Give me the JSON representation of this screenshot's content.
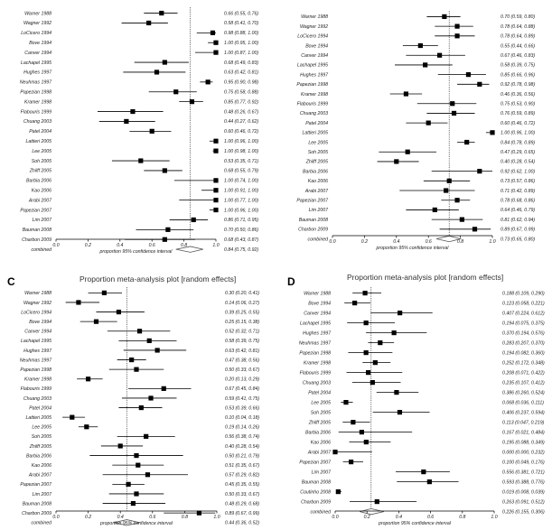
{
  "chart_data": [
    {
      "type": "forest",
      "panel": "",
      "title": "",
      "xlabel": "proportion 95% confidence interval",
      "xlim": [
        0.0,
        1.0
      ],
      "xticks": [
        "0.0",
        "0.2",
        "0.4",
        "0.6",
        "0.8",
        "1.0"
      ],
      "pooled_line": 0.84,
      "studies": [
        {
          "name": "Warner 1988",
          "est": 0.66,
          "lo": 0.55,
          "hi": 0.76,
          "ci": "0.66 (0.55, 0.76)"
        },
        {
          "name": "Wagner 1992",
          "est": 0.58,
          "lo": 0.41,
          "hi": 0.7,
          "ci": "0.58 (0.41, 0.70)"
        },
        {
          "name": "LoCicero 1994",
          "est": 0.98,
          "lo": 0.88,
          "hi": 1.0,
          "ci": "0.98 (0.88, 1.00)"
        },
        {
          "name": "Bove 1994",
          "est": 1.0,
          "lo": 0.95,
          "hi": 1.0,
          "ci": "1.00 (0.95, 1.00)"
        },
        {
          "name": "Canver 1994",
          "est": 1.0,
          "lo": 0.87,
          "hi": 1.0,
          "ci": "1.00 (0.87, 1.00)"
        },
        {
          "name": "Lachapel 1995",
          "est": 0.68,
          "lo": 0.49,
          "hi": 0.83,
          "ci": "0.68 (0.49, 0.83)"
        },
        {
          "name": "Hughes 1997",
          "est": 0.63,
          "lo": 0.42,
          "hi": 0.81,
          "ci": "0.63 (0.42, 0.81)"
        },
        {
          "name": "Neuhmas 1997",
          "est": 0.95,
          "lo": 0.9,
          "hi": 0.98,
          "ci": "0.95 (0.90, 0.98)"
        },
        {
          "name": "Papezian 1998",
          "est": 0.75,
          "lo": 0.58,
          "hi": 0.88,
          "ci": "0.75 (0.58, 0.88)"
        },
        {
          "name": "Kramer 1998",
          "est": 0.85,
          "lo": 0.77,
          "hi": 0.92,
          "ci": "0.85 (0.77, 0.92)"
        },
        {
          "name": "Flabouris 1999",
          "est": 0.48,
          "lo": 0.26,
          "hi": 0.67,
          "ci": "0.48 (0.26, 0.67)"
        },
        {
          "name": "Chuang 2003",
          "est": 0.44,
          "lo": 0.27,
          "hi": 0.62,
          "ci": "0.44 (0.27, 0.62)"
        },
        {
          "name": "Patel 2004",
          "est": 0.6,
          "lo": 0.46,
          "hi": 0.72,
          "ci": "0.60 (0.46, 0.72)"
        },
        {
          "name": "Lattieri 2005",
          "est": 1.0,
          "lo": 0.96,
          "hi": 1.0,
          "ci": "1.00 (0.96, 1.00)"
        },
        {
          "name": "Lee 2005",
          "est": 1.0,
          "lo": 0.98,
          "hi": 1.0,
          "ci": "1.00 (0.98, 1.00)"
        },
        {
          "name": "Soh 2005",
          "est": 0.53,
          "lo": 0.35,
          "hi": 0.71,
          "ci": "0.53 (0.35, 0.71)"
        },
        {
          "name": "Zhilff 2005",
          "est": 0.68,
          "lo": 0.55,
          "hi": 0.79,
          "ci": "0.68 (0.55, 0.79)"
        },
        {
          "name": "Barbia 2006",
          "est": 1.0,
          "lo": 0.74,
          "hi": 1.0,
          "ci": "1.00 (0.74, 1.00)"
        },
        {
          "name": "Kao 2006",
          "est": 1.0,
          "lo": 0.91,
          "hi": 1.0,
          "ci": "1.00 (0.91, 1.00)"
        },
        {
          "name": "Arabi 2007",
          "est": 1.0,
          "lo": 0.77,
          "hi": 1.0,
          "ci": "1.00 (0.77, 1.00)"
        },
        {
          "name": "Papezian 2007",
          "est": 1.0,
          "lo": 0.96,
          "hi": 1.0,
          "ci": "1.00 (0.96, 1.00)"
        },
        {
          "name": "Lim 2007",
          "est": 0.86,
          "lo": 0.71,
          "hi": 0.95,
          "ci": "0.86 (0.71, 0.95)"
        },
        {
          "name": "Bauman 2008",
          "est": 0.7,
          "lo": 0.5,
          "hi": 0.86,
          "ci": "0.70 (0.50, 0.86)"
        },
        {
          "name": "Charbon 2009",
          "est": 0.68,
          "lo": 0.43,
          "hi": 0.87,
          "ci": "0.68 (0.43, 0.87)"
        }
      ],
      "combined": {
        "name": "combined",
        "est": 0.84,
        "lo": 0.75,
        "hi": 0.92,
        "ci": "0.84 (0.75, 0.92)"
      }
    },
    {
      "type": "forest",
      "panel": "",
      "title": "",
      "xlabel": "proportion 95% confidence interval",
      "xlim": [
        0.0,
        1.0
      ],
      "xticks": [
        "0.0",
        "0.2",
        "0.4",
        "0.6",
        "0.8",
        "1.0"
      ],
      "pooled_line": 0.73,
      "studies": [
        {
          "name": "Warner 1988",
          "est": 0.7,
          "lo": 0.59,
          "hi": 0.8,
          "ci": "0.70 (0.59, 0.80)"
        },
        {
          "name": "Wagner 1992",
          "est": 0.78,
          "lo": 0.64,
          "hi": 0.88,
          "ci": "0.78 (0.64, 0.88)"
        },
        {
          "name": "LoCicero 1994",
          "est": 0.78,
          "lo": 0.64,
          "hi": 0.89,
          "ci": "0.78 (0.64, 0.89)"
        },
        {
          "name": "Bove 1994",
          "est": 0.55,
          "lo": 0.44,
          "hi": 0.66,
          "ci": "0.55 (0.44, 0.66)"
        },
        {
          "name": "Canver 1994",
          "est": 0.67,
          "lo": 0.46,
          "hi": 0.83,
          "ci": "0.67 (0.46, 0.83)"
        },
        {
          "name": "Lachapel 1995",
          "est": 0.58,
          "lo": 0.39,
          "hi": 0.75,
          "ci": "0.58 (0.39, 0.75)"
        },
        {
          "name": "Hughes 1997",
          "est": 0.85,
          "lo": 0.66,
          "hi": 0.96,
          "ci": "0.85 (0.66, 0.96)"
        },
        {
          "name": "Papezian 1998",
          "est": 0.92,
          "lo": 0.78,
          "hi": 0.98,
          "ci": "0.92 (0.78, 0.98)"
        },
        {
          "name": "Kramer 1998",
          "est": 0.46,
          "lo": 0.36,
          "hi": 0.56,
          "ci": "0.46 (0.36, 0.56)"
        },
        {
          "name": "Flabouris 1999",
          "est": 0.75,
          "lo": 0.53,
          "hi": 0.9,
          "ci": "0.75 (0.53, 0.90)"
        },
        {
          "name": "Chuang 2003",
          "est": 0.76,
          "lo": 0.59,
          "hi": 0.89,
          "ci": "0.76 (0.59, 0.89)"
        },
        {
          "name": "Patel 2004",
          "est": 0.6,
          "lo": 0.46,
          "hi": 0.72,
          "ci": "0.60 (0.46, 0.72)"
        },
        {
          "name": "Lattieri 2005",
          "est": 1.0,
          "lo": 0.96,
          "hi": 1.0,
          "ci": "1.00 (0.96, 1.00)"
        },
        {
          "name": "Lee 2005",
          "est": 0.84,
          "lo": 0.78,
          "hi": 0.89,
          "ci": "0.84 (0.78, 0.89)"
        },
        {
          "name": "Soh 2005",
          "est": 0.47,
          "lo": 0.29,
          "hi": 0.65,
          "ci": "0.47 (0.29, 0.65)"
        },
        {
          "name": "Zhilff 2005",
          "est": 0.4,
          "lo": 0.28,
          "hi": 0.54,
          "ci": "0.40 (0.28, 0.54)"
        },
        {
          "name": "Barbia 2006",
          "est": 0.92,
          "lo": 0.62,
          "hi": 1.0,
          "ci": "0.92 (0.62, 1.00)"
        },
        {
          "name": "Kao 2006",
          "est": 0.73,
          "lo": 0.57,
          "hi": 0.86,
          "ci": "0.73 (0.57, 0.86)"
        },
        {
          "name": "Arabi 2007",
          "est": 0.71,
          "lo": 0.42,
          "hi": 0.89,
          "ci": "0.71 (0.42, 0.89)"
        },
        {
          "name": "Papezian 2007",
          "est": 0.78,
          "lo": 0.68,
          "hi": 0.86,
          "ci": "0.78 (0.68, 0.86)"
        },
        {
          "name": "Lim 2007",
          "est": 0.64,
          "lo": 0.46,
          "hi": 0.79,
          "ci": "0.64 (0.46, 0.79)"
        },
        {
          "name": "Bauman 2008",
          "est": 0.81,
          "lo": 0.62,
          "hi": 0.94,
          "ci": "0.81 (0.62, 0.94)"
        },
        {
          "name": "Charbon 2009",
          "est": 0.89,
          "lo": 0.67,
          "hi": 0.99,
          "ci": "0.89 (0.67, 0.99)"
        }
      ],
      "combined": {
        "name": "combined",
        "est": 0.73,
        "lo": 0.65,
        "hi": 0.8,
        "ci": "0.73 (0.65, 0.80)"
      }
    },
    {
      "type": "forest",
      "panel": "C",
      "title": "Proportion meta-analysis plot [random effects]",
      "xlabel": "proportion 95% confidence interval",
      "xlim": [
        0.0,
        1.0
      ],
      "xticks": [
        "0.0",
        "0.2",
        "0.4",
        "0.6",
        "0.8",
        "1.0"
      ],
      "pooled_line": 0.44,
      "studies": [
        {
          "name": "Warner 1988",
          "est": 0.3,
          "lo": 0.2,
          "hi": 0.41,
          "ci": "0.30 (0.20, 0.41)"
        },
        {
          "name": "Wagner 1992",
          "est": 0.14,
          "lo": 0.06,
          "hi": 0.27,
          "ci": "0.14 (0.06, 0.27)"
        },
        {
          "name": "LoCicero 1994",
          "est": 0.39,
          "lo": 0.25,
          "hi": 0.55,
          "ci": "0.39 (0.25, 0.55)"
        },
        {
          "name": "Bove 1994",
          "est": 0.25,
          "lo": 0.15,
          "hi": 0.38,
          "ci": "0.25 (0.15, 0.38)"
        },
        {
          "name": "Canver 1994",
          "est": 0.52,
          "lo": 0.32,
          "hi": 0.71,
          "ci": "0.52 (0.32, 0.71)"
        },
        {
          "name": "Lachapel 1995",
          "est": 0.58,
          "lo": 0.39,
          "hi": 0.75,
          "ci": "0.58 (0.39, 0.75)"
        },
        {
          "name": "Hughes 1997",
          "est": 0.63,
          "lo": 0.42,
          "hi": 0.81,
          "ci": "0.63 (0.42, 0.81)"
        },
        {
          "name": "Neuhmas 1997",
          "est": 0.47,
          "lo": 0.38,
          "hi": 0.56,
          "ci": "0.47 (0.38, 0.56)"
        },
        {
          "name": "Papezian 1998",
          "est": 0.5,
          "lo": 0.33,
          "hi": 0.67,
          "ci": "0.50 (0.33, 0.67)"
        },
        {
          "name": "Kramer 1998",
          "est": 0.2,
          "lo": 0.13,
          "hi": 0.29,
          "ci": "0.20 (0.13, 0.29)"
        },
        {
          "name": "Flabouris 1999",
          "est": 0.67,
          "lo": 0.45,
          "hi": 0.84,
          "ci": "0.67 (0.45, 0.84)"
        },
        {
          "name": "Chuang 2003",
          "est": 0.59,
          "lo": 0.41,
          "hi": 0.75,
          "ci": "0.59 (0.41, 0.75)"
        },
        {
          "name": "Patel 2004",
          "est": 0.53,
          "lo": 0.39,
          "hi": 0.66,
          "ci": "0.53 (0.39, 0.66)"
        },
        {
          "name": "Lattieri 2005",
          "est": 0.1,
          "lo": 0.04,
          "hi": 0.18,
          "ci": "0.10 (0.04, 0.18)"
        },
        {
          "name": "Lee 2005",
          "est": 0.19,
          "lo": 0.14,
          "hi": 0.26,
          "ci": "0.19 (0.14, 0.26)"
        },
        {
          "name": "Soh 2005",
          "est": 0.56,
          "lo": 0.38,
          "hi": 0.74,
          "ci": "0.56 (0.38, 0.74)"
        },
        {
          "name": "Zhilff 2005",
          "est": 0.4,
          "lo": 0.28,
          "hi": 0.54,
          "ci": "0.40 (0.28, 0.54)"
        },
        {
          "name": "Barbia 2006",
          "est": 0.5,
          "lo": 0.21,
          "hi": 0.79,
          "ci": "0.50 (0.21, 0.79)"
        },
        {
          "name": "Kao 2006",
          "est": 0.51,
          "lo": 0.35,
          "hi": 0.67,
          "ci": "0.51 (0.35, 0.67)"
        },
        {
          "name": "Arabi 2007",
          "est": 0.57,
          "lo": 0.29,
          "hi": 0.82,
          "ci": "0.57 (0.29, 0.82)"
        },
        {
          "name": "Papezian 2007",
          "est": 0.45,
          "lo": 0.35,
          "hi": 0.55,
          "ci": "0.45 (0.35, 0.55)"
        },
        {
          "name": "Lim 2007",
          "est": 0.5,
          "lo": 0.33,
          "hi": 0.67,
          "ci": "0.50 (0.33, 0.67)"
        },
        {
          "name": "Bauman 2008",
          "est": 0.48,
          "lo": 0.29,
          "hi": 0.68,
          "ci": "0.48 (0.29, 0.68)"
        },
        {
          "name": "Charbon 2009",
          "est": 0.89,
          "lo": 0.67,
          "hi": 0.99,
          "ci": "0.89 (0.67, 0.99)"
        }
      ],
      "combined": {
        "name": "combined",
        "est": 0.44,
        "lo": 0.36,
        "hi": 0.52,
        "ci": "0.44 (0.36, 0.52)"
      }
    },
    {
      "type": "forest",
      "panel": "D",
      "title": "Proportion meta-analysis plot [random effects]",
      "xlabel": "proportion 95% confidence interval",
      "xlim": [
        0.0,
        1.0
      ],
      "xticks": [
        "0.0",
        "0.2",
        "0.4",
        "0.6",
        "0.8",
        "1.0"
      ],
      "pooled_line": 0.226,
      "studies": [
        {
          "name": "Warner 1988",
          "est": 0.188,
          "lo": 0.109,
          "hi": 0.29,
          "ci": "0.188 (0.109, 0.290)"
        },
        {
          "name": "Bove 1994",
          "est": 0.123,
          "lo": 0.058,
          "hi": 0.221,
          "ci": "0.123 (0.058, 0.221)"
        },
        {
          "name": "Canver 1994",
          "est": 0.407,
          "lo": 0.224,
          "hi": 0.612,
          "ci": "0.407 (0.224, 0.612)"
        },
        {
          "name": "Lachapel 1995",
          "est": 0.194,
          "lo": 0.075,
          "hi": 0.375,
          "ci": "0.194 (0.075, 0.375)"
        },
        {
          "name": "Hughes 1997",
          "est": 0.37,
          "lo": 0.194,
          "hi": 0.576,
          "ci": "0.370 (0.194, 0.576)"
        },
        {
          "name": "Neuhmas 1997",
          "est": 0.283,
          "lo": 0.207,
          "hi": 0.37,
          "ci": "0.283 (0.207, 0.370)"
        },
        {
          "name": "Papezian 1998",
          "est": 0.194,
          "lo": 0.082,
          "hi": 0.36,
          "ci": "0.194 (0.082, 0.360)"
        },
        {
          "name": "Kramer 1998",
          "est": 0.252,
          "lo": 0.172,
          "hi": 0.348,
          "ci": "0.252 (0.172, 0.348)"
        },
        {
          "name": "Flabouris 1999",
          "est": 0.208,
          "lo": 0.071,
          "hi": 0.422,
          "ci": "0.208 (0.071, 0.422)"
        },
        {
          "name": "Chuang 2003",
          "est": 0.235,
          "lo": 0.107,
          "hi": 0.412,
          "ci": "0.235 (0.107, 0.412)"
        },
        {
          "name": "Patel 2004",
          "est": 0.386,
          "lo": 0.26,
          "hi": 0.524,
          "ci": "0.386 (0.260, 0.524)"
        },
        {
          "name": "Lee 2005",
          "est": 0.068,
          "lo": 0.036,
          "hi": 0.111,
          "ci": "0.068 (0.036, 0.111)"
        },
        {
          "name": "Soh 2005",
          "est": 0.406,
          "lo": 0.237,
          "hi": 0.594,
          "ci": "0.406 (0.237, 0.594)"
        },
        {
          "name": "Zhilff 2005",
          "est": 0.113,
          "lo": 0.047,
          "hi": 0.219,
          "ci": "0.113 (0.047, 0.219)"
        },
        {
          "name": "Barbia 2006",
          "est": 0.167,
          "lo": 0.021,
          "hi": 0.484,
          "ci": "0.167 (0.021, 0.484)"
        },
        {
          "name": "Kao 2006",
          "est": 0.195,
          "lo": 0.088,
          "hi": 0.349,
          "ci": "0.195 (0.088, 0.349)"
        },
        {
          "name": "Arabi 2007",
          "est": 0.0,
          "lo": 0.0,
          "hi": 0.232,
          "ci": "0.000 (0.000, 0.232)"
        },
        {
          "name": "Papezian 2007",
          "est": 0.1,
          "lo": 0.049,
          "hi": 0.176,
          "ci": "0.100 (0.049, 0.176)"
        },
        {
          "name": "Lim 2007",
          "est": 0.556,
          "lo": 0.381,
          "hi": 0.721,
          "ci": "0.556 (0.381, 0.721)"
        },
        {
          "name": "Bauman 2008",
          "est": 0.593,
          "lo": 0.388,
          "hi": 0.776,
          "ci": "0.593 (0.388, 0.776)"
        },
        {
          "name": "Coutinho 2008",
          "est": 0.019,
          "lo": 0.008,
          "hi": 0.039,
          "ci": "0.019 (0.008, 0.039)"
        },
        {
          "name": "Charbon 2009",
          "est": 0.263,
          "lo": 0.091,
          "hi": 0.512,
          "ci": "0.263 (0.091, 0.512)"
        }
      ],
      "combined": {
        "name": "combined",
        "est": 0.226,
        "lo": 0.155,
        "hi": 0.306,
        "ci": "0.226 (0.155, 0.306)"
      }
    }
  ]
}
